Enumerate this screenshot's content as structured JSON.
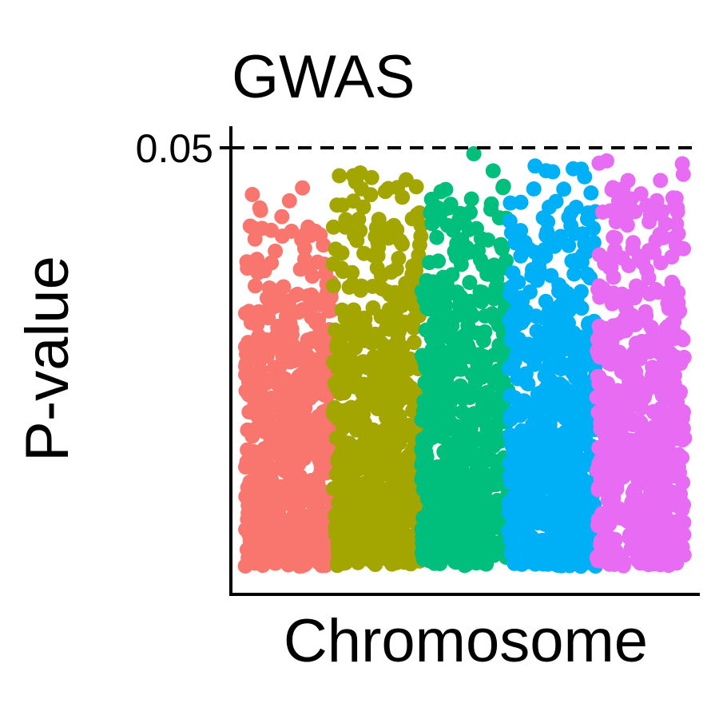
{
  "chart_data": {
    "type": "scatter",
    "title": "GWAS",
    "xlabel": "Chromosome",
    "ylabel": "P-value",
    "yticks": [
      {
        "value": 0.05,
        "label": "0.05"
      }
    ],
    "ylim": [
      0,
      0.05
    ],
    "grid": false,
    "legend": "none",
    "threshold": {
      "value": 0.05,
      "style": "dashed",
      "color": "#000000"
    },
    "series": [
      {
        "color": "#F8766D",
        "x_range": [
          0.5,
          1.5
        ],
        "points": 600,
        "max_value": 0.047
      },
      {
        "color": "#A3A500",
        "x_range": [
          1.5,
          2.5
        ],
        "points": 600,
        "max_value": 0.05
      },
      {
        "color": "#00BF7D",
        "x_range": [
          2.5,
          3.5
        ],
        "points": 600,
        "max_value": 0.05
      },
      {
        "color": "#00B0F6",
        "x_range": [
          3.5,
          4.5
        ],
        "points": 600,
        "max_value": 0.05
      },
      {
        "color": "#E76BF3",
        "x_range": [
          4.5,
          5.5
        ],
        "points": 600,
        "max_value": 0.05
      }
    ]
  }
}
